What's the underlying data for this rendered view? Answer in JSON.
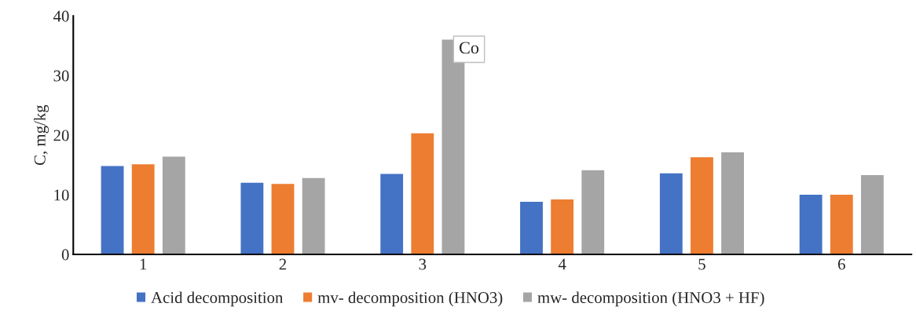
{
  "chart_data": {
    "type": "bar",
    "ylabel": "C, mg/kg",
    "categories": [
      "1",
      "2",
      "3",
      "4",
      "5",
      "6"
    ],
    "series": [
      {
        "name": "Acid decomposition",
        "color": "#4472c4",
        "values": [
          14.9,
          12.1,
          13.6,
          8.9,
          13.7,
          10.1
        ]
      },
      {
        "name": "mv- decomposition (HNO3)",
        "color": "#ed7d31",
        "values": [
          15.2,
          11.9,
          20.4,
          9.3,
          16.4,
          10.1
        ]
      },
      {
        "name": "mw- decomposition (HNO3 + HF)",
        "color": "#a5a5a5",
        "values": [
          16.5,
          12.9,
          36.1,
          14.2,
          17.2,
          13.4
        ]
      }
    ],
    "annotations": [
      "Co"
    ],
    "ylim": [
      0,
      40
    ],
    "yticks": [
      0,
      10,
      20,
      30,
      40
    ],
    "grid": false,
    "legend": "bottom"
  }
}
